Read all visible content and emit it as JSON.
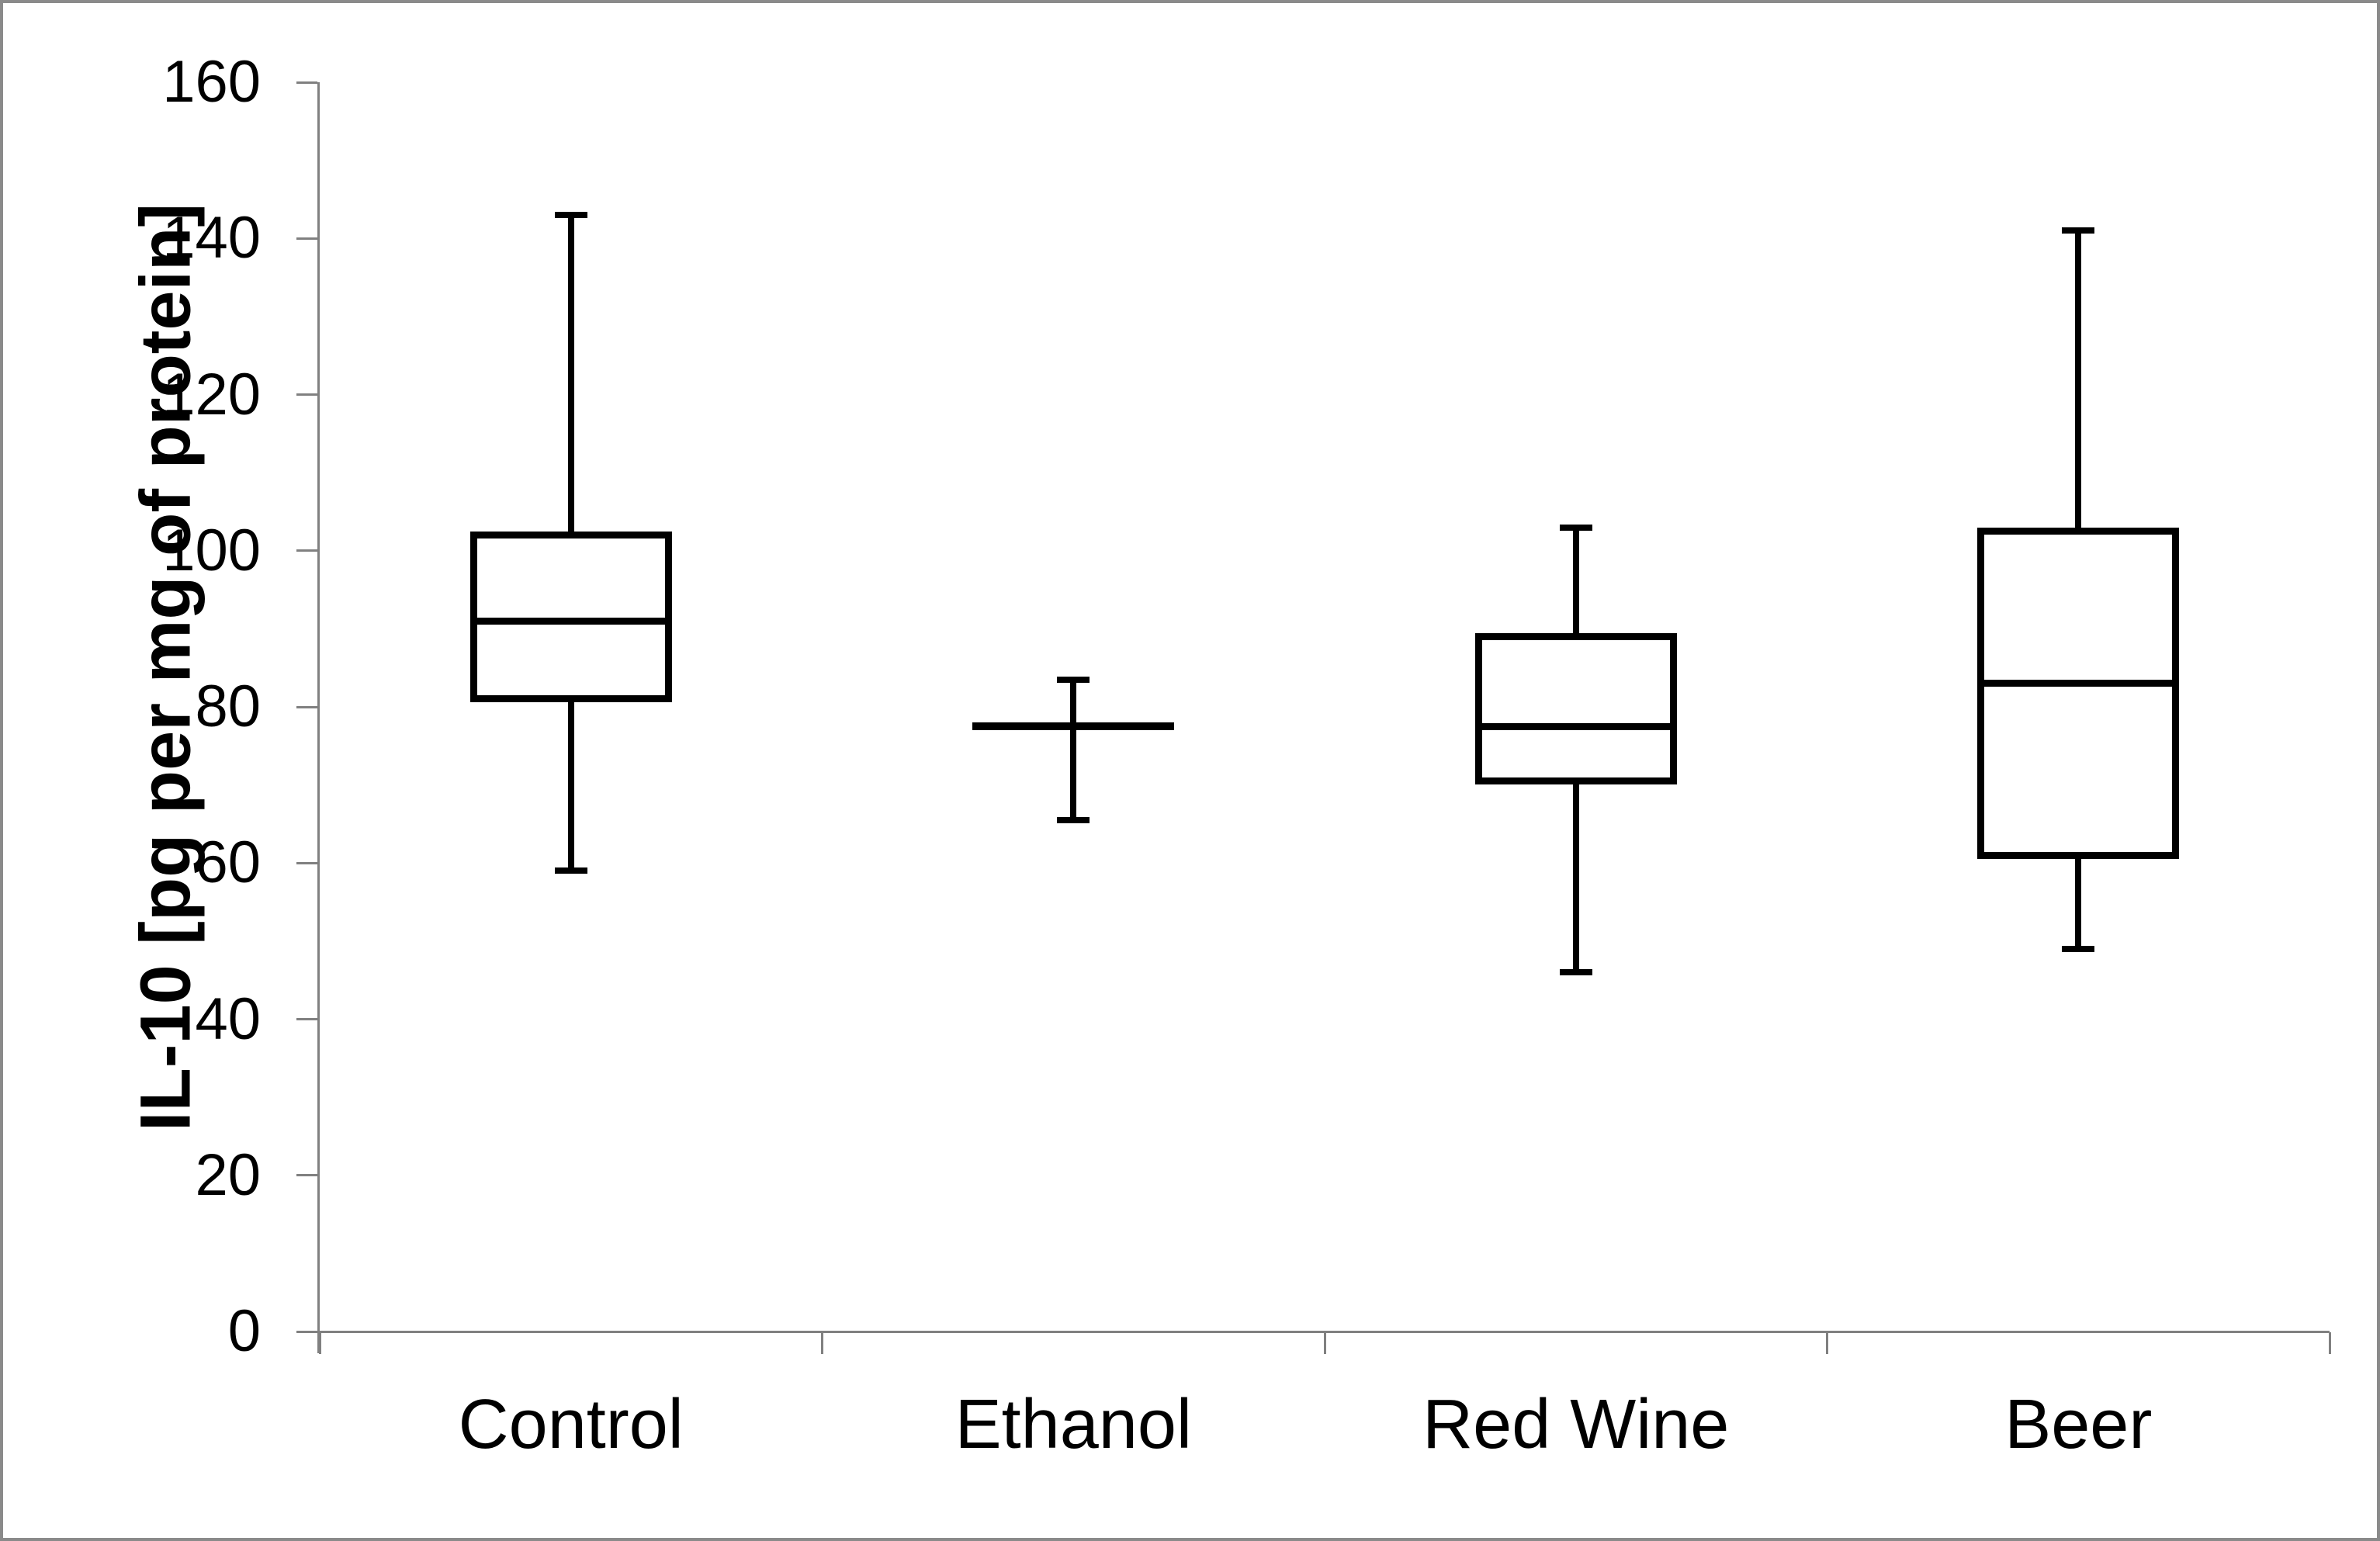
{
  "figure": {
    "background": "#ffffff",
    "border_color": "#8a8a8a"
  },
  "chart_data": {
    "type": "boxplot",
    "title": "",
    "ylabel": "IL-10 [pg per mg of protein]",
    "xlabel": "",
    "categories": [
      "Control",
      "Ethanol",
      "Red Wine",
      "Beer"
    ],
    "y_axis": {
      "min": 0,
      "max": 160,
      "tick_interval": 20,
      "tick_labels": [
        "0",
        "20",
        "40",
        "60",
        "80",
        "100",
        "120",
        "140",
        "160"
      ]
    },
    "grid": false,
    "legend": false,
    "series": [
      {
        "name": "Control",
        "whisker_low": 59,
        "q1": 81,
        "median": 91,
        "q3": 102,
        "whisker_high": 143
      },
      {
        "name": "Ethanol",
        "whisker_low": 65.5,
        "q1": 77.5,
        "median": 77.5,
        "q3": 77.5,
        "whisker_high": 83.5
      },
      {
        "name": "Red Wine",
        "whisker_low": 46,
        "q1": 70.5,
        "median": 77.5,
        "q3": 89,
        "whisker_high": 103
      },
      {
        "name": "Beer",
        "whisker_low": 49,
        "q1": 61,
        "median": 83,
        "q3": 102.5,
        "whisker_high": 141
      }
    ],
    "colors": {
      "box_line": "#000000",
      "axis_line": "#808080",
      "background": "#ffffff"
    }
  }
}
